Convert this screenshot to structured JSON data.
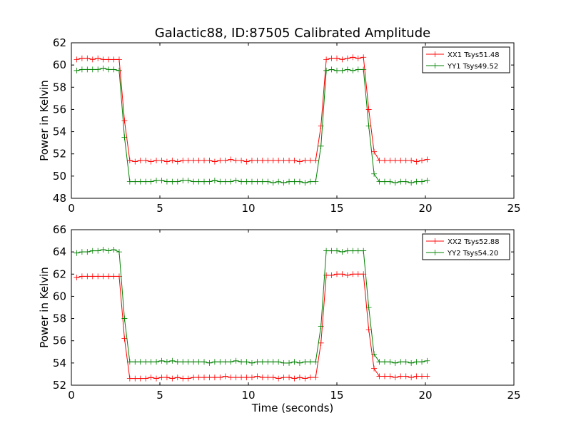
{
  "title": "Galactic88, ID:87505 Calibrated Amplitude",
  "chart_data": [
    {
      "type": "line",
      "ylabel": "Power in Kelvin",
      "xlabel": "",
      "xlim": [
        0,
        25
      ],
      "ylim": [
        48,
        62
      ],
      "xticks": [
        "0",
        "5",
        "10",
        "15",
        "20",
        "25"
      ],
      "yticks": [
        "48",
        "50",
        "52",
        "54",
        "56",
        "58",
        "60",
        "62"
      ],
      "legend_position": "top-right",
      "grid": false,
      "x": [
        0.3,
        0.6,
        0.9,
        1.2,
        1.5,
        1.8,
        2.1,
        2.4,
        2.7,
        3.0,
        3.3,
        3.6,
        3.9,
        4.2,
        4.5,
        4.8,
        5.1,
        5.4,
        5.7,
        6.0,
        6.3,
        6.6,
        6.9,
        7.2,
        7.5,
        7.8,
        8.1,
        8.4,
        8.7,
        9.0,
        9.3,
        9.6,
        9.9,
        10.2,
        10.5,
        10.8,
        11.1,
        11.4,
        11.7,
        12.0,
        12.3,
        12.6,
        12.9,
        13.2,
        13.5,
        13.8,
        14.1,
        14.4,
        14.7,
        15.0,
        15.3,
        15.6,
        15.9,
        16.2,
        16.5,
        16.8,
        17.1,
        17.4,
        17.7,
        18.0,
        18.3,
        18.6,
        18.9,
        19.2,
        19.5,
        19.8,
        20.1
      ],
      "series": [
        {
          "name": "XX1 Tsys51.48",
          "color": "#ff0000",
          "values": [
            60.5,
            60.6,
            60.6,
            60.5,
            60.6,
            60.5,
            60.5,
            60.5,
            60.5,
            55.0,
            51.4,
            51.3,
            51.4,
            51.4,
            51.3,
            51.4,
            51.4,
            51.3,
            51.4,
            51.3,
            51.4,
            51.4,
            51.4,
            51.4,
            51.4,
            51.4,
            51.3,
            51.4,
            51.4,
            51.5,
            51.4,
            51.4,
            51.3,
            51.4,
            51.4,
            51.4,
            51.4,
            51.4,
            51.4,
            51.4,
            51.4,
            51.4,
            51.3,
            51.4,
            51.4,
            51.4,
            54.5,
            60.5,
            60.6,
            60.6,
            60.5,
            60.6,
            60.7,
            60.6,
            60.7,
            56.0,
            52.2,
            51.4,
            51.4,
            51.4,
            51.4,
            51.4,
            51.4,
            51.4,
            51.3,
            51.4,
            51.5
          ]
        },
        {
          "name": "YY1 Tsys49.52",
          "color": "#008000",
          "values": [
            59.5,
            59.6,
            59.6,
            59.6,
            59.6,
            59.7,
            59.6,
            59.6,
            59.5,
            53.5,
            49.5,
            49.5,
            49.5,
            49.5,
            49.5,
            49.6,
            49.6,
            49.5,
            49.5,
            49.5,
            49.6,
            49.6,
            49.5,
            49.5,
            49.5,
            49.5,
            49.6,
            49.5,
            49.5,
            49.5,
            49.6,
            49.5,
            49.5,
            49.5,
            49.5,
            49.5,
            49.5,
            49.4,
            49.5,
            49.4,
            49.5,
            49.5,
            49.5,
            49.4,
            49.5,
            49.5,
            52.7,
            59.5,
            59.6,
            59.5,
            59.5,
            59.6,
            59.5,
            59.6,
            59.6,
            54.5,
            50.2,
            49.5,
            49.5,
            49.5,
            49.4,
            49.5,
            49.5,
            49.4,
            49.5,
            49.5,
            49.6
          ]
        }
      ]
    },
    {
      "type": "line",
      "ylabel": "Power in Kelvin",
      "xlabel": "Time (seconds)",
      "xlim": [
        0,
        25
      ],
      "ylim": [
        52,
        66
      ],
      "xticks": [
        "0",
        "5",
        "10",
        "15",
        "20",
        "25"
      ],
      "yticks": [
        "52",
        "54",
        "56",
        "58",
        "60",
        "62",
        "64",
        "66"
      ],
      "legend_position": "top-right",
      "grid": false,
      "x": [
        0.3,
        0.6,
        0.9,
        1.2,
        1.5,
        1.8,
        2.1,
        2.4,
        2.7,
        3.0,
        3.3,
        3.6,
        3.9,
        4.2,
        4.5,
        4.8,
        5.1,
        5.4,
        5.7,
        6.0,
        6.3,
        6.6,
        6.9,
        7.2,
        7.5,
        7.8,
        8.1,
        8.4,
        8.7,
        9.0,
        9.3,
        9.6,
        9.9,
        10.2,
        10.5,
        10.8,
        11.1,
        11.4,
        11.7,
        12.0,
        12.3,
        12.6,
        12.9,
        13.2,
        13.5,
        13.8,
        14.1,
        14.4,
        14.7,
        15.0,
        15.3,
        15.6,
        15.9,
        16.2,
        16.5,
        16.8,
        17.1,
        17.4,
        17.7,
        18.0,
        18.3,
        18.6,
        18.9,
        19.2,
        19.5,
        19.8,
        20.1
      ],
      "series": [
        {
          "name": "XX2 Tsys52.88",
          "color": "#ff0000",
          "values": [
            61.7,
            61.8,
            61.8,
            61.8,
            61.8,
            61.8,
            61.8,
            61.8,
            61.8,
            56.2,
            52.6,
            52.6,
            52.6,
            52.6,
            52.7,
            52.6,
            52.7,
            52.7,
            52.6,
            52.7,
            52.6,
            52.6,
            52.7,
            52.7,
            52.7,
            52.7,
            52.7,
            52.7,
            52.8,
            52.7,
            52.7,
            52.7,
            52.7,
            52.7,
            52.8,
            52.7,
            52.7,
            52.7,
            52.6,
            52.7,
            52.7,
            52.6,
            52.7,
            52.6,
            52.7,
            52.7,
            55.8,
            61.9,
            61.9,
            62.0,
            62.0,
            61.9,
            62.0,
            62.0,
            62.0,
            57.0,
            53.5,
            52.8,
            52.8,
            52.8,
            52.7,
            52.8,
            52.8,
            52.7,
            52.8,
            52.8,
            52.8
          ]
        },
        {
          "name": "YY2 Tsys54.20",
          "color": "#008000",
          "values": [
            63.9,
            64.0,
            64.0,
            64.1,
            64.1,
            64.2,
            64.1,
            64.2,
            64.0,
            58.0,
            54.1,
            54.1,
            54.1,
            54.1,
            54.1,
            54.1,
            54.2,
            54.1,
            54.2,
            54.1,
            54.1,
            54.1,
            54.1,
            54.1,
            54.1,
            54.0,
            54.1,
            54.1,
            54.1,
            54.1,
            54.2,
            54.1,
            54.1,
            54.0,
            54.1,
            54.1,
            54.1,
            54.1,
            54.1,
            54.0,
            54.0,
            54.1,
            54.0,
            54.1,
            54.1,
            54.1,
            57.3,
            64.1,
            64.1,
            64.1,
            64.0,
            64.1,
            64.1,
            64.1,
            64.1,
            59.0,
            54.8,
            54.1,
            54.1,
            54.1,
            54.0,
            54.1,
            54.1,
            54.0,
            54.1,
            54.1,
            54.2
          ]
        }
      ]
    }
  ]
}
